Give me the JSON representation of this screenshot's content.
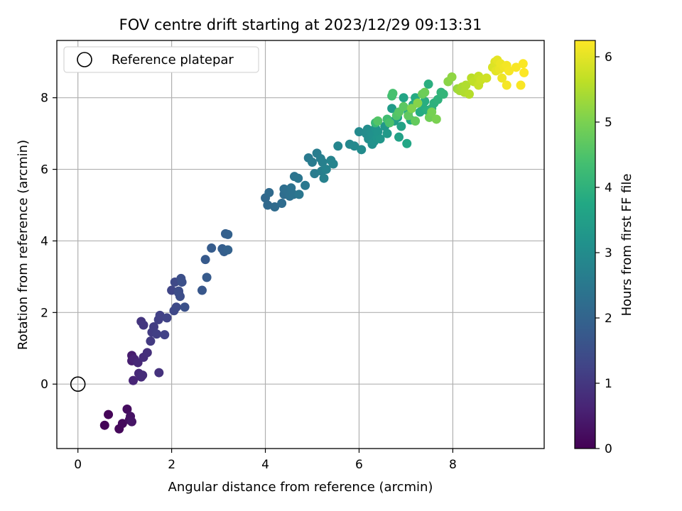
{
  "chart_data": {
    "type": "scatter",
    "title": "FOV centre drift starting at 2023/12/29 09:13:31",
    "xlabel": "Angular distance from reference (arcmin)",
    "ylabel": "Rotation from reference (arcmin)",
    "xlim": [
      -0.45,
      9.95
    ],
    "ylim": [
      -1.8,
      9.6
    ],
    "xticks": [
      0,
      2,
      4,
      6,
      8
    ],
    "yticks": [
      0,
      2,
      4,
      6,
      8
    ],
    "grid": true,
    "legend": {
      "location": "upper-left",
      "entries": [
        "Reference platepar"
      ]
    },
    "reference_point": {
      "label": "Reference platepar",
      "x": 0,
      "y": 0
    },
    "colorbar": {
      "label": "Hours from first FF file",
      "colormap": "viridis",
      "range": [
        0,
        6.25
      ],
      "ticks": [
        0,
        1,
        2,
        3,
        4,
        5,
        6
      ]
    },
    "points": [
      {
        "x": 0.57,
        "y": -1.15,
        "h": 0.05
      },
      {
        "x": 0.65,
        "y": -0.85,
        "h": 0.08
      },
      {
        "x": 0.88,
        "y": -1.25,
        "h": 0.12
      },
      {
        "x": 0.95,
        "y": -1.1,
        "h": 0.15
      },
      {
        "x": 1.05,
        "y": -0.7,
        "h": 0.2
      },
      {
        "x": 1.1,
        "y": -1.0,
        "h": 0.25
      },
      {
        "x": 1.12,
        "y": -0.9,
        "h": 0.3
      },
      {
        "x": 1.15,
        "y": -1.05,
        "h": 0.35
      },
      {
        "x": 1.15,
        "y": 0.8,
        "h": 0.5
      },
      {
        "x": 1.15,
        "y": 0.65,
        "h": 0.55
      },
      {
        "x": 1.2,
        "y": 0.7,
        "h": 0.6
      },
      {
        "x": 1.18,
        "y": 0.1,
        "h": 0.65
      },
      {
        "x": 1.28,
        "y": 0.6,
        "h": 0.7
      },
      {
        "x": 1.3,
        "y": 0.3,
        "h": 0.72
      },
      {
        "x": 1.35,
        "y": 0.2,
        "h": 0.75
      },
      {
        "x": 1.38,
        "y": 0.25,
        "h": 0.78
      },
      {
        "x": 1.4,
        "y": 0.75,
        "h": 0.8
      },
      {
        "x": 1.48,
        "y": 0.88,
        "h": 0.85
      },
      {
        "x": 1.73,
        "y": 0.32,
        "h": 0.9
      },
      {
        "x": 1.35,
        "y": 1.75,
        "h": 0.95
      },
      {
        "x": 1.4,
        "y": 1.65,
        "h": 1.0
      },
      {
        "x": 1.55,
        "y": 1.2,
        "h": 1.05
      },
      {
        "x": 1.58,
        "y": 1.45,
        "h": 1.1
      },
      {
        "x": 1.62,
        "y": 1.6,
        "h": 1.12
      },
      {
        "x": 1.68,
        "y": 1.4,
        "h": 1.15
      },
      {
        "x": 1.72,
        "y": 1.8,
        "h": 1.18
      },
      {
        "x": 1.75,
        "y": 1.92,
        "h": 1.2
      },
      {
        "x": 1.85,
        "y": 1.38,
        "h": 1.22
      },
      {
        "x": 1.9,
        "y": 1.85,
        "h": 1.25
      },
      {
        "x": 2.0,
        "y": 2.62,
        "h": 1.3
      },
      {
        "x": 2.05,
        "y": 2.05,
        "h": 1.35
      },
      {
        "x": 2.07,
        "y": 2.85,
        "h": 1.38
      },
      {
        "x": 2.1,
        "y": 2.15,
        "h": 1.4
      },
      {
        "x": 2.15,
        "y": 2.55,
        "h": 1.42
      },
      {
        "x": 2.15,
        "y": 2.6,
        "h": 1.45
      },
      {
        "x": 2.18,
        "y": 2.45,
        "h": 1.48
      },
      {
        "x": 2.2,
        "y": 2.95,
        "h": 1.5
      },
      {
        "x": 2.22,
        "y": 2.85,
        "h": 1.52
      },
      {
        "x": 2.28,
        "y": 2.15,
        "h": 1.55
      },
      {
        "x": 2.65,
        "y": 2.62,
        "h": 1.7
      },
      {
        "x": 2.72,
        "y": 3.48,
        "h": 1.75
      },
      {
        "x": 2.75,
        "y": 2.98,
        "h": 1.78
      },
      {
        "x": 2.85,
        "y": 3.8,
        "h": 1.8
      },
      {
        "x": 3.08,
        "y": 3.78,
        "h": 1.85
      },
      {
        "x": 3.12,
        "y": 3.7,
        "h": 1.88
      },
      {
        "x": 3.15,
        "y": 4.2,
        "h": 1.9
      },
      {
        "x": 3.2,
        "y": 4.18,
        "h": 1.92
      },
      {
        "x": 3.2,
        "y": 3.75,
        "h": 1.95
      },
      {
        "x": 4.0,
        "y": 5.2,
        "h": 2.1
      },
      {
        "x": 4.05,
        "y": 5.0,
        "h": 2.12
      },
      {
        "x": 4.08,
        "y": 5.35,
        "h": 2.15
      },
      {
        "x": 4.2,
        "y": 4.95,
        "h": 2.18
      },
      {
        "x": 4.35,
        "y": 5.05,
        "h": 2.2
      },
      {
        "x": 4.4,
        "y": 5.3,
        "h": 2.22
      },
      {
        "x": 4.4,
        "y": 5.45,
        "h": 2.25
      },
      {
        "x": 4.45,
        "y": 5.42,
        "h": 2.28
      },
      {
        "x": 4.52,
        "y": 5.25,
        "h": 2.3
      },
      {
        "x": 4.55,
        "y": 5.48,
        "h": 2.33
      },
      {
        "x": 4.6,
        "y": 5.3,
        "h": 2.36
      },
      {
        "x": 4.62,
        "y": 5.8,
        "h": 2.4
      },
      {
        "x": 4.7,
        "y": 5.75,
        "h": 2.42
      },
      {
        "x": 4.72,
        "y": 5.3,
        "h": 2.45
      },
      {
        "x": 4.85,
        "y": 5.55,
        "h": 2.5
      },
      {
        "x": 4.92,
        "y": 6.32,
        "h": 2.55
      },
      {
        "x": 5.0,
        "y": 6.2,
        "h": 2.58
      },
      {
        "x": 5.05,
        "y": 5.88,
        "h": 2.6
      },
      {
        "x": 5.1,
        "y": 6.45,
        "h": 2.62
      },
      {
        "x": 5.18,
        "y": 6.3,
        "h": 2.65
      },
      {
        "x": 5.2,
        "y": 5.95,
        "h": 2.68
      },
      {
        "x": 5.22,
        "y": 6.2,
        "h": 2.7
      },
      {
        "x": 5.25,
        "y": 5.75,
        "h": 2.72
      },
      {
        "x": 5.3,
        "y": 6.0,
        "h": 2.75
      },
      {
        "x": 5.4,
        "y": 6.25,
        "h": 2.78
      },
      {
        "x": 5.45,
        "y": 6.15,
        "h": 2.8
      },
      {
        "x": 5.55,
        "y": 6.65,
        "h": 2.82
      },
      {
        "x": 5.8,
        "y": 6.7,
        "h": 2.9
      },
      {
        "x": 5.9,
        "y": 6.65,
        "h": 2.92
      },
      {
        "x": 6.0,
        "y": 7.05,
        "h": 2.95
      },
      {
        "x": 6.05,
        "y": 6.55,
        "h": 2.97
      },
      {
        "x": 6.15,
        "y": 7.0,
        "h": 3.0
      },
      {
        "x": 6.18,
        "y": 7.12,
        "h": 3.02
      },
      {
        "x": 6.2,
        "y": 6.85,
        "h": 3.05
      },
      {
        "x": 6.25,
        "y": 7.05,
        "h": 3.07
      },
      {
        "x": 6.28,
        "y": 6.7,
        "h": 3.1
      },
      {
        "x": 6.3,
        "y": 6.95,
        "h": 3.12
      },
      {
        "x": 6.32,
        "y": 6.78,
        "h": 3.15
      },
      {
        "x": 6.35,
        "y": 7.15,
        "h": 3.17
      },
      {
        "x": 6.38,
        "y": 6.88,
        "h": 3.2
      },
      {
        "x": 6.4,
        "y": 7.05,
        "h": 3.22
      },
      {
        "x": 6.45,
        "y": 6.85,
        "h": 3.25
      },
      {
        "x": 6.55,
        "y": 7.2,
        "h": 3.3
      },
      {
        "x": 6.6,
        "y": 7.0,
        "h": 3.35
      },
      {
        "x": 6.7,
        "y": 7.7,
        "h": 3.4
      },
      {
        "x": 6.75,
        "y": 7.35,
        "h": 3.45
      },
      {
        "x": 6.82,
        "y": 7.45,
        "h": 3.5
      },
      {
        "x": 6.85,
        "y": 6.9,
        "h": 3.55
      },
      {
        "x": 6.9,
        "y": 7.2,
        "h": 3.6
      },
      {
        "x": 6.95,
        "y": 8.0,
        "h": 3.65
      },
      {
        "x": 7.02,
        "y": 6.72,
        "h": 3.7
      },
      {
        "x": 7.05,
        "y": 7.6,
        "h": 3.72
      },
      {
        "x": 7.1,
        "y": 7.38,
        "h": 3.75
      },
      {
        "x": 7.15,
        "y": 7.8,
        "h": 3.78
      },
      {
        "x": 7.2,
        "y": 8.0,
        "h": 3.8
      },
      {
        "x": 7.3,
        "y": 7.6,
        "h": 3.82
      },
      {
        "x": 7.35,
        "y": 7.8,
        "h": 3.85
      },
      {
        "x": 7.4,
        "y": 7.9,
        "h": 3.88
      },
      {
        "x": 7.45,
        "y": 7.65,
        "h": 3.9
      },
      {
        "x": 7.48,
        "y": 8.38,
        "h": 3.92
      },
      {
        "x": 7.55,
        "y": 7.7,
        "h": 3.95
      },
      {
        "x": 7.6,
        "y": 7.85,
        "h": 3.97
      },
      {
        "x": 7.68,
        "y": 7.95,
        "h": 4.0
      },
      {
        "x": 7.75,
        "y": 8.15,
        "h": 4.05
      },
      {
        "x": 7.8,
        "y": 8.1,
        "h": 4.1
      },
      {
        "x": 6.35,
        "y": 7.3,
        "h": 4.2
      },
      {
        "x": 6.6,
        "y": 7.4,
        "h": 4.3
      },
      {
        "x": 6.7,
        "y": 8.05,
        "h": 4.35
      },
      {
        "x": 6.72,
        "y": 8.12,
        "h": 4.4
      },
      {
        "x": 6.8,
        "y": 7.5,
        "h": 4.5
      },
      {
        "x": 6.85,
        "y": 7.6,
        "h": 4.6
      },
      {
        "x": 6.95,
        "y": 7.75,
        "h": 4.65
      },
      {
        "x": 7.05,
        "y": 7.5,
        "h": 4.7
      },
      {
        "x": 7.2,
        "y": 7.35,
        "h": 4.75
      },
      {
        "x": 7.35,
        "y": 8.1,
        "h": 4.8
      },
      {
        "x": 7.4,
        "y": 8.15,
        "h": 4.85
      },
      {
        "x": 7.5,
        "y": 7.45,
        "h": 4.9
      },
      {
        "x": 7.55,
        "y": 7.6,
        "h": 4.95
      },
      {
        "x": 7.65,
        "y": 7.4,
        "h": 5.0
      },
      {
        "x": 6.4,
        "y": 7.35,
        "h": 4.55
      },
      {
        "x": 6.65,
        "y": 7.3,
        "h": 4.45
      },
      {
        "x": 7.12,
        "y": 7.7,
        "h": 5.05
      },
      {
        "x": 7.25,
        "y": 7.85,
        "h": 5.1
      },
      {
        "x": 7.9,
        "y": 8.45,
        "h": 5.15
      },
      {
        "x": 7.98,
        "y": 8.58,
        "h": 5.2
      },
      {
        "x": 8.1,
        "y": 8.25,
        "h": 5.3
      },
      {
        "x": 8.15,
        "y": 8.2,
        "h": 5.4
      },
      {
        "x": 8.2,
        "y": 8.3,
        "h": 5.45
      },
      {
        "x": 8.28,
        "y": 8.35,
        "h": 5.5
      },
      {
        "x": 8.35,
        "y": 8.1,
        "h": 5.55
      },
      {
        "x": 8.4,
        "y": 8.55,
        "h": 5.6
      },
      {
        "x": 8.45,
        "y": 8.45,
        "h": 5.65
      },
      {
        "x": 8.55,
        "y": 8.6,
        "h": 5.7
      },
      {
        "x": 8.55,
        "y": 8.35,
        "h": 5.72
      },
      {
        "x": 8.6,
        "y": 8.5,
        "h": 5.75
      },
      {
        "x": 8.72,
        "y": 8.55,
        "h": 5.8
      },
      {
        "x": 8.25,
        "y": 8.15,
        "h": 5.5
      },
      {
        "x": 8.85,
        "y": 8.85,
        "h": 5.9
      },
      {
        "x": 8.9,
        "y": 9.0,
        "h": 5.95
      },
      {
        "x": 8.92,
        "y": 8.75,
        "h": 6.0
      },
      {
        "x": 8.95,
        "y": 9.05,
        "h": 6.02
      },
      {
        "x": 9.0,
        "y": 8.8,
        "h": 6.05
      },
      {
        "x": 9.02,
        "y": 8.95,
        "h": 6.07
      },
      {
        "x": 9.05,
        "y": 8.55,
        "h": 6.1
      },
      {
        "x": 9.1,
        "y": 8.85,
        "h": 6.12
      },
      {
        "x": 9.15,
        "y": 8.9,
        "h": 6.15
      },
      {
        "x": 9.15,
        "y": 8.35,
        "h": 6.17
      },
      {
        "x": 9.2,
        "y": 8.75,
        "h": 6.18
      },
      {
        "x": 9.35,
        "y": 8.85,
        "h": 6.2
      },
      {
        "x": 9.45,
        "y": 8.35,
        "h": 6.21
      },
      {
        "x": 9.5,
        "y": 8.95,
        "h": 6.22
      },
      {
        "x": 9.52,
        "y": 8.7,
        "h": 6.24
      }
    ]
  }
}
